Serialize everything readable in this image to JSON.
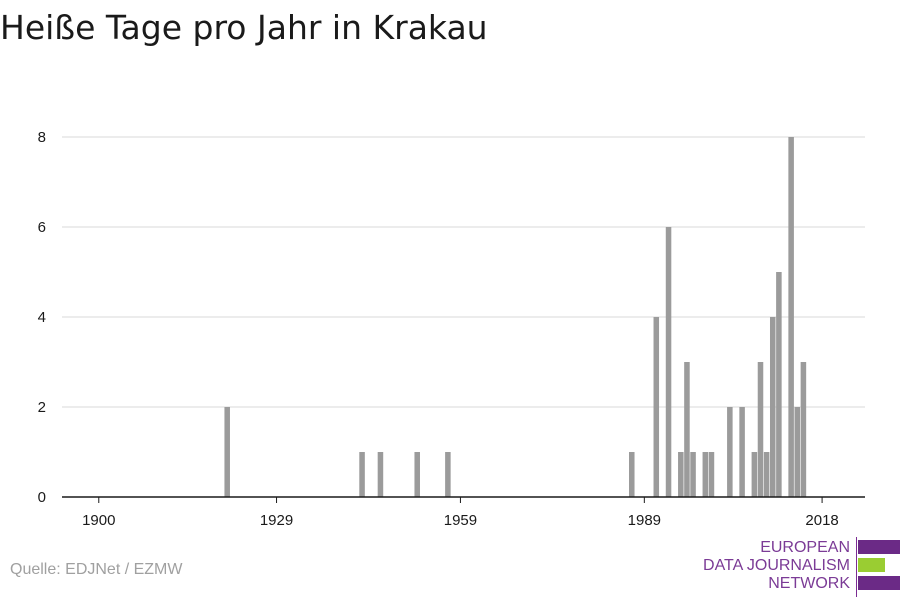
{
  "title": "Heiße Tage pro Jahr in Krakau",
  "source": "Quelle: EDJNet / EZMW",
  "logo": {
    "line1": "EUROPEAN",
    "line2": "DATA JOURNALISM",
    "line3": "NETWORK"
  },
  "colors": {
    "bar": "#9b9b9b",
    "grid": "#d9d9d9",
    "axis": "#1a1a1a",
    "logo_purple": "#6b2a86",
    "logo_green": "#9acd32"
  },
  "chart_data": {
    "type": "bar",
    "title": "Heiße Tage pro Jahr in Krakau",
    "xlabel": "",
    "ylabel": "",
    "xlim": [
      1894,
      2025
    ],
    "ylim": [
      0,
      8
    ],
    "yticks": [
      0,
      2,
      4,
      6,
      8
    ],
    "xticks": [
      1900,
      1929,
      1959,
      1989,
      2018
    ],
    "grid": true,
    "x": [
      1921,
      1943,
      1946,
      1952,
      1957,
      1987,
      1991,
      1993,
      1995,
      1996,
      1997,
      1999,
      2000,
      2003,
      2005,
      2007,
      2008,
      2009,
      2010,
      2011,
      2013,
      2014,
      2015
    ],
    "values": [
      2,
      1,
      1,
      1,
      1,
      1,
      4,
      6,
      1,
      3,
      1,
      1,
      1,
      2,
      2,
      1,
      3,
      1,
      4,
      5,
      8,
      2,
      3
    ]
  }
}
